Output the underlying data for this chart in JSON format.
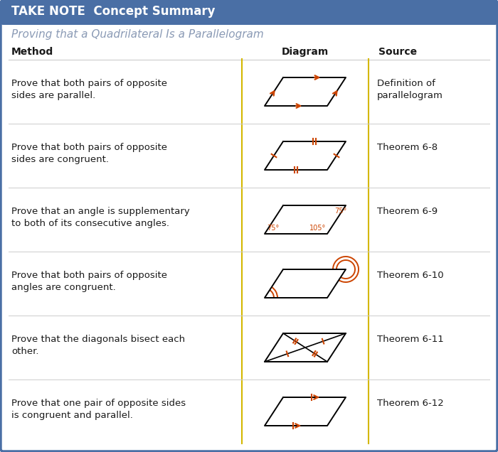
{
  "title_bar_text": "TAKE NOTE  Concept Summary",
  "title_bar_bg": "#4a6fa5",
  "title_bar_text_color": "#ffffff",
  "subtitle": "Proving that a Quadrilateral Is a Parallelogram",
  "subtitle_color": "#8a9ab5",
  "header_method": "Method",
  "header_diagram": "Diagram",
  "header_source": "Source",
  "bg_color": "#ffffff",
  "border_color": "#4a6fa5",
  "divider_color": "#d4b800",
  "text_color": "#1a1a1a",
  "orange_color": "#cc4400",
  "rows": [
    {
      "method": "Prove that both pairs of opposite\nsides are parallel.",
      "source": "Definition of\nparallelogram",
      "diagram_type": "parallel_arrows"
    },
    {
      "method": "Prove that both pairs of opposite\nsides are congruent.",
      "source": "Theorem 6-8",
      "diagram_type": "tick_marks"
    },
    {
      "method": "Prove that an angle is supplementary\nto both of its consecutive angles.",
      "source": "Theorem 6-9",
      "diagram_type": "angles"
    },
    {
      "method": "Prove that both pairs of opposite\nangles are congruent.",
      "source": "Theorem 6-10",
      "diagram_type": "arc_angles"
    },
    {
      "method": "Prove that the diagonals bisect each\nother.",
      "source": "Theorem 6-11",
      "diagram_type": "diagonals"
    },
    {
      "method": "Prove that one pair of opposite sides\nis congruent and parallel.",
      "source": "Theorem 6-12",
      "diagram_type": "one_pair"
    }
  ],
  "fig_width": 7.0,
  "fig_height": 6.36,
  "dpi": 100
}
